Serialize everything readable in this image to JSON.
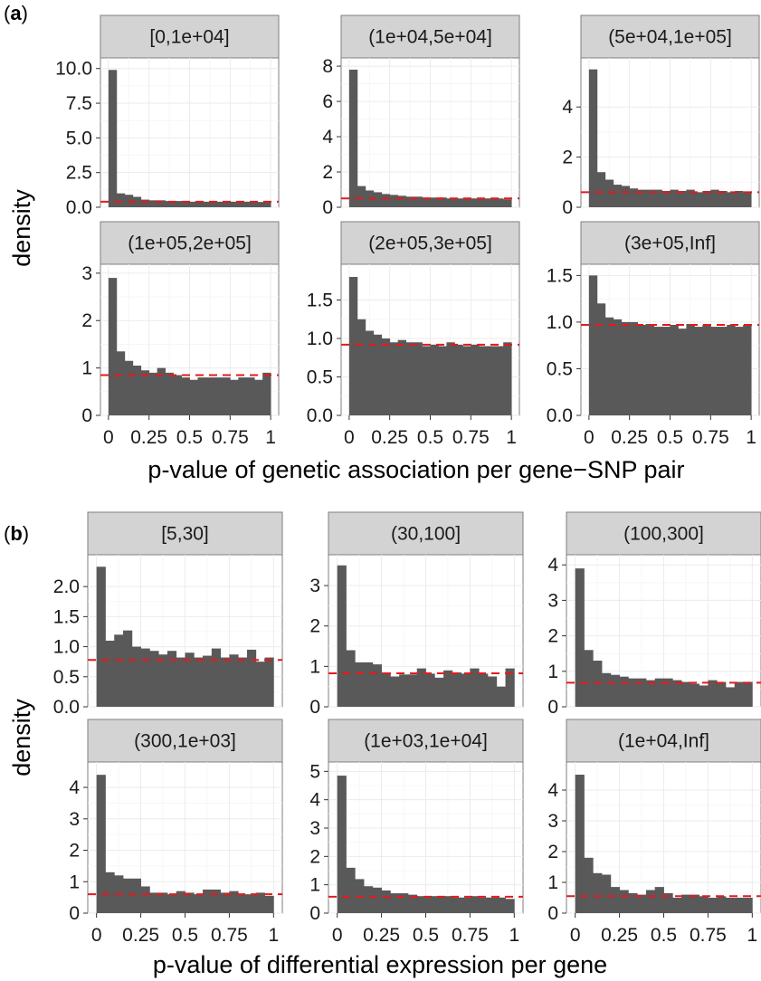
{
  "chart_data": [
    {
      "tag_open": "(",
      "tag_letter": "a",
      "tag_close": ")",
      "type": "bar",
      "xlabel": "p-value of genetic association per gene−SNP pair",
      "ylabel": "density",
      "xlim": [
        0,
        1
      ],
      "x_ticks": [
        "0",
        "0.25",
        "0.5",
        "0.75",
        "1"
      ],
      "grid": true,
      "bins": 20,
      "reference_line_color": "#e41a1c",
      "bar_color": "#595959",
      "panels": [
        {
          "strip": "[0,1e+04]",
          "ylim": [
            0,
            10.3
          ],
          "y_ticks": [
            0,
            2.5,
            5,
            7.5,
            10
          ],
          "y_tick_labels": [
            "0.0",
            "2.5",
            "5.0",
            "7.5",
            "10.0"
          ],
          "reference": 0.4,
          "values": [
            9.9,
            1.0,
            0.9,
            0.75,
            0.55,
            0.5,
            0.5,
            0.45,
            0.45,
            0.45,
            0.4,
            0.4,
            0.4,
            0.4,
            0.4,
            0.4,
            0.4,
            0.4,
            0.38,
            0.38
          ]
        },
        {
          "strip": "(1e+04,5e+04]",
          "ylim": [
            0,
            8.1
          ],
          "y_ticks": [
            0,
            2,
            4,
            6,
            8
          ],
          "y_tick_labels": [
            "0",
            "2",
            "4",
            "6",
            "8"
          ],
          "reference": 0.5,
          "values": [
            7.8,
            1.2,
            0.95,
            0.85,
            0.75,
            0.7,
            0.65,
            0.6,
            0.6,
            0.55,
            0.55,
            0.55,
            0.5,
            0.5,
            0.5,
            0.5,
            0.5,
            0.5,
            0.5,
            0.45
          ]
        },
        {
          "strip": "(5e+04,1e+05]",
          "ylim": [
            0,
            5.7
          ],
          "y_ticks": [
            0,
            2,
            4
          ],
          "y_tick_labels": [
            "0",
            "2",
            "4"
          ],
          "reference": 0.6,
          "values": [
            5.5,
            1.4,
            1.1,
            0.9,
            0.85,
            0.75,
            0.7,
            0.7,
            0.7,
            0.65,
            0.7,
            0.65,
            0.7,
            0.6,
            0.65,
            0.7,
            0.65,
            0.6,
            0.65,
            0.6
          ]
        },
        {
          "strip": "(1e+05,2e+05]",
          "ylim": [
            0,
            3.05
          ],
          "y_ticks": [
            0,
            1,
            2,
            3
          ],
          "y_tick_labels": [
            "0",
            "1",
            "2",
            "3"
          ],
          "reference": 0.85,
          "values": [
            2.9,
            1.35,
            1.15,
            1.05,
            0.95,
            0.9,
            1.0,
            0.9,
            0.85,
            0.8,
            0.75,
            0.8,
            0.8,
            0.8,
            0.8,
            0.75,
            0.8,
            0.8,
            0.75,
            0.9
          ]
        },
        {
          "strip": "(2e+05,3e+05]",
          "ylim": [
            0,
            1.88
          ],
          "y_ticks": [
            0,
            0.5,
            1,
            1.5
          ],
          "y_tick_labels": [
            "0.0",
            "0.5",
            "1.0",
            "1.5"
          ],
          "reference": 0.92,
          "values": [
            1.8,
            1.25,
            1.1,
            1.05,
            1.0,
            0.95,
            0.98,
            0.95,
            0.95,
            0.9,
            0.92,
            0.9,
            0.95,
            0.92,
            0.9,
            0.92,
            0.9,
            0.9,
            0.9,
            0.95
          ]
        },
        {
          "strip": "(3e+05,Inf]",
          "ylim": [
            0,
            1.55
          ],
          "y_ticks": [
            0,
            0.5,
            1,
            1.5
          ],
          "y_tick_labels": [
            "0.0",
            "0.5",
            "1.0",
            "1.5"
          ],
          "reference": 0.97,
          "values": [
            1.5,
            1.2,
            1.05,
            1.03,
            1.0,
            1.0,
            0.97,
            0.98,
            0.95,
            0.95,
            0.97,
            0.93,
            0.98,
            0.95,
            0.97,
            0.95,
            0.95,
            0.97,
            0.95,
            0.97
          ]
        }
      ]
    },
    {
      "tag_open": "(",
      "tag_letter": "b",
      "tag_close": ")",
      "type": "bar",
      "xlabel": "p-value of differential expression per gene",
      "ylabel": "density",
      "xlim": [
        0,
        1
      ],
      "x_ticks": [
        "0",
        "0.25",
        "0.5",
        "0.75",
        "1"
      ],
      "grid": true,
      "bins": 20,
      "reference_line_color": "#e41a1c",
      "bar_color": "#595959",
      "panels": [
        {
          "strip": "[5,30]",
          "ylim": [
            0,
            2.42
          ],
          "y_ticks": [
            0,
            0.5,
            1,
            1.5,
            2
          ],
          "y_tick_labels": [
            "0.0",
            "0.5",
            "1.0",
            "1.5",
            "2.0"
          ],
          "reference": 0.78,
          "values": [
            2.33,
            1.1,
            1.2,
            1.27,
            1.0,
            0.97,
            0.93,
            0.87,
            0.93,
            0.82,
            0.9,
            0.82,
            0.85,
            0.97,
            0.82,
            0.87,
            0.82,
            0.95,
            0.75,
            0.82
          ]
        },
        {
          "strip": "(30,100]",
          "ylim": [
            0,
            3.6
          ],
          "y_ticks": [
            0,
            1,
            2,
            3
          ],
          "y_tick_labels": [
            "0",
            "1",
            "2",
            "3"
          ],
          "reference": 0.83,
          "values": [
            3.5,
            1.4,
            1.1,
            1.1,
            1.05,
            0.85,
            0.75,
            0.8,
            0.8,
            0.95,
            0.82,
            0.72,
            0.9,
            0.85,
            0.82,
            0.95,
            0.82,
            0.75,
            0.5,
            0.95
          ]
        },
        {
          "strip": "(100,300]",
          "ylim": [
            0,
            4.1
          ],
          "y_ticks": [
            0,
            1,
            2,
            3,
            4
          ],
          "y_tick_labels": [
            "0",
            "1",
            "2",
            "3",
            "4"
          ],
          "reference": 0.68,
          "values": [
            3.9,
            1.6,
            1.3,
            0.95,
            0.9,
            0.85,
            0.8,
            0.8,
            0.75,
            0.8,
            0.8,
            0.75,
            0.7,
            0.65,
            0.6,
            0.75,
            0.7,
            0.55,
            0.7,
            0.7
          ]
        },
        {
          "strip": "(300,1e+03]",
          "ylim": [
            0,
            4.6
          ],
          "y_ticks": [
            0,
            1,
            2,
            3,
            4
          ],
          "y_tick_labels": [
            "0",
            "1",
            "2",
            "3",
            "4"
          ],
          "reference": 0.6,
          "values": [
            4.4,
            1.3,
            1.2,
            1.1,
            1.1,
            0.85,
            0.65,
            0.65,
            0.6,
            0.7,
            0.65,
            0.6,
            0.75,
            0.75,
            0.65,
            0.7,
            0.6,
            0.6,
            0.65,
            0.55
          ]
        },
        {
          "strip": "(1e+03,1e+04]",
          "ylim": [
            0,
            5.1
          ],
          "y_ticks": [
            0,
            1,
            2,
            3,
            4,
            5
          ],
          "y_tick_labels": [
            "0",
            "1",
            "2",
            "3",
            "4",
            "5"
          ],
          "reference": 0.58,
          "values": [
            4.85,
            1.6,
            1.2,
            0.95,
            0.9,
            0.8,
            0.7,
            0.7,
            0.65,
            0.6,
            0.6,
            0.6,
            0.6,
            0.55,
            0.55,
            0.6,
            0.55,
            0.55,
            0.55,
            0.5
          ]
        },
        {
          "strip": "(1e+04,Inf]",
          "ylim": [
            0,
            4.7
          ],
          "y_ticks": [
            0,
            1,
            2,
            3,
            4
          ],
          "y_tick_labels": [
            "0",
            "1",
            "2",
            "3",
            "4"
          ],
          "reference": 0.55,
          "values": [
            4.5,
            1.8,
            1.3,
            1.25,
            0.85,
            0.75,
            0.65,
            0.6,
            0.75,
            0.85,
            0.65,
            0.5,
            0.6,
            0.6,
            0.55,
            0.5,
            0.55,
            0.5,
            0.5,
            0.5
          ]
        }
      ]
    }
  ]
}
